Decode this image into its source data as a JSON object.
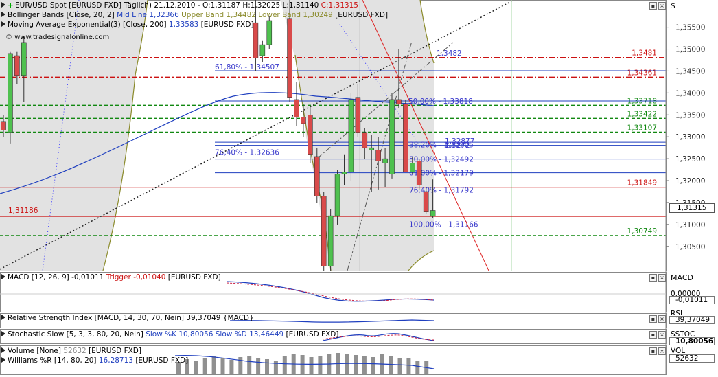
{
  "main_panel": {
    "header": "EUR/USD Spot [EURUSD FXD]  Täglich) 21.12.2010 - O:1,31187 H:1,32025 L:1,31140 ",
    "close_text": "C:1,31315",
    "bollinger_legend": {
      "prefix": "Bollinger Bands [Close, 20, 2]",
      "mid": "Mid Line 1,32366",
      "upper": "Upper Band 1,34482",
      "lower": "Lower Band 1,30249",
      "suffix": "[EURUSD FXD]"
    },
    "ema_legend": {
      "prefix": "Moving Average Exponential(3) [Close, 200]",
      "value": "1,33583",
      "suffix": "[EURUSD FXD]"
    },
    "watermark": "www.tradesignalonline.com",
    "axis_unit": "$",
    "current_price_label": "1,31315"
  },
  "colors": {
    "up_candle": "#4fc14f",
    "down_candle": "#d94a4a",
    "bollinger": "#8a8a2a",
    "ema": "#1f3fbf",
    "red_level": "#cc1111",
    "green_level": "#118811",
    "blue_level": "#1f3fbf",
    "fib_text": "#3a3acc"
  },
  "chart_data": [
    {
      "type": "candlestick",
      "title": "EUR/USD Spot [EURUSD FXD]",
      "ylim": [
        1.2995,
        1.3612
      ],
      "y_ticks": [
        "1,35500",
        "1,35000",
        "1,34500",
        "1,34000",
        "1,33500",
        "1,33000",
        "1,32500",
        "1,32000",
        "1,31500",
        "1,31000",
        "1,30500"
      ],
      "candles": [
        {
          "i": 0,
          "o": 1.3335,
          "h": 1.335,
          "l": 1.33,
          "c": 1.3315
        },
        {
          "i": 1,
          "o": 1.331,
          "h": 1.3495,
          "l": 1.3285,
          "c": 1.349
        },
        {
          "i": 2,
          "o": 1.3485,
          "h": 1.3495,
          "l": 1.342,
          "c": 1.344
        },
        {
          "i": 3,
          "o": 1.344,
          "h": 1.353,
          "l": 1.338,
          "c": 1.3515
        },
        {
          "i": 37,
          "o": 1.356,
          "h": 1.3615,
          "l": 1.345,
          "c": 1.348
        },
        {
          "i": 38,
          "o": 1.3485,
          "h": 1.352,
          "l": 1.347,
          "c": 1.351
        },
        {
          "i": 39,
          "o": 1.351,
          "h": 1.3575,
          "l": 1.35,
          "c": 1.3565
        },
        {
          "i": 42,
          "o": 1.357,
          "h": 1.3612,
          "l": 1.338,
          "c": 1.339
        },
        {
          "i": 43,
          "o": 1.3385,
          "h": 1.3425,
          "l": 1.3325,
          "c": 1.3345
        },
        {
          "i": 44,
          "o": 1.3345,
          "h": 1.3375,
          "l": 1.33,
          "c": 1.333
        },
        {
          "i": 45,
          "o": 1.335,
          "h": 1.337,
          "l": 1.324,
          "c": 1.326
        },
        {
          "i": 46,
          "o": 1.3255,
          "h": 1.3275,
          "l": 1.315,
          "c": 1.3165
        },
        {
          "i": 47,
          "o": 1.3165,
          "h": 1.3175,
          "l": 1.2995,
          "c": 1.3005
        },
        {
          "i": 48,
          "o": 1.3005,
          "h": 1.3135,
          "l": 1.2995,
          "c": 1.312
        },
        {
          "i": 49,
          "o": 1.312,
          "h": 1.3225,
          "l": 1.31,
          "c": 1.3215
        },
        {
          "i": 50,
          "o": 1.3215,
          "h": 1.326,
          "l": 1.319,
          "c": 1.322
        },
        {
          "i": 51,
          "o": 1.322,
          "h": 1.34,
          "l": 1.32,
          "c": 1.3385
        },
        {
          "i": 52,
          "o": 1.339,
          "h": 1.342,
          "l": 1.33,
          "c": 1.331
        },
        {
          "i": 53,
          "o": 1.331,
          "h": 1.332,
          "l": 1.325,
          "c": 1.3275
        },
        {
          "i": 54,
          "o": 1.327,
          "h": 1.3305,
          "l": 1.3175,
          "c": 1.3275
        },
        {
          "i": 55,
          "o": 1.327,
          "h": 1.33,
          "l": 1.318,
          "c": 1.3245
        },
        {
          "i": 56,
          "o": 1.324,
          "h": 1.3275,
          "l": 1.3185,
          "c": 1.325
        },
        {
          "i": 57,
          "o": 1.3215,
          "h": 1.34,
          "l": 1.3205,
          "c": 1.3385
        },
        {
          "i": 58,
          "o": 1.3385,
          "h": 1.35,
          "l": 1.3365,
          "c": 1.3375
        },
        {
          "i": 59,
          "o": 1.3375,
          "h": 1.3385,
          "l": 1.322,
          "c": 1.322
        },
        {
          "i": 60,
          "o": 1.322,
          "h": 1.3255,
          "l": 1.3215,
          "c": 1.324
        },
        {
          "i": 61,
          "o": 1.3245,
          "h": 1.325,
          "l": 1.318,
          "c": 1.319
        },
        {
          "i": 62,
          "o": 1.3175,
          "h": 1.3185,
          "l": 1.3125,
          "c": 1.313
        },
        {
          "i": 63,
          "o": 1.3119,
          "h": 1.3203,
          "l": 1.3114,
          "c": 1.3132
        }
      ],
      "levels": [
        {
          "value": 1.3481,
          "label": "1,3481",
          "color": "red",
          "style": "dashdot",
          "side": "right"
        },
        {
          "value": 1.34361,
          "label": "1,34361",
          "color": "red",
          "style": "dashdot",
          "side": "right"
        },
        {
          "value": 1.33718,
          "label": "1,33718",
          "color": "green",
          "style": "dashed",
          "side": "right"
        },
        {
          "value": 1.33422,
          "label": "1,33422",
          "color": "green",
          "style": "dashed",
          "side": "right"
        },
        {
          "value": 1.33107,
          "label": "1,33107",
          "color": "green",
          "style": "dashed",
          "side": "right"
        },
        {
          "value": 1.31849,
          "label": "1,31849",
          "color": "red",
          "style": "solid",
          "side": "right"
        },
        {
          "value": 1.31186,
          "label": "1,31186",
          "color": "red",
          "style": "solid",
          "side": "left"
        },
        {
          "value": 1.30749,
          "label": "1,30749",
          "color": "green",
          "style": "dashed",
          "side": "right"
        }
      ],
      "fib_labels": [
        {
          "value": 1.34507,
          "text": "61,80% - 1,34507"
        },
        {
          "value": 1.32636,
          "text": "76,40% - 1,32636"
        },
        {
          "value": 1.3482,
          "text": "1,3482"
        },
        {
          "value": 1.33818,
          "text": "50,00% - 1,33818"
        },
        {
          "value": 1.32877,
          "text": "1,32877"
        },
        {
          "value": 1.32805,
          "text": "38,20% - 1,32805"
        },
        {
          "value": 1.3272,
          "text": "1,3272"
        },
        {
          "value": 1.32492,
          "text": "50,00% - 1,32492"
        },
        {
          "value": 1.32179,
          "text": "61,80% - 1,32179"
        },
        {
          "value": 1.31792,
          "text": "76,40% - 1,31792"
        },
        {
          "value": 1.31166,
          "text": "100,00% - 1,31166"
        }
      ]
    }
  ],
  "sub_panels": [
    {
      "id": "macd",
      "legend_prefix": "MACD [12, 26, 9] -0,01011",
      "legend_extra": "Trigger -0,01040",
      "legend_suffix": "[EURUSD FXD]",
      "axis_title": "MACD",
      "axis_tick": "0,00000",
      "axis_value": "-0,01011"
    },
    {
      "id": "rsi",
      "legend_prefix": "Relative Strength Index [MACD, 14, 30, 70, Nein] 39,37049",
      "legend_extra": "",
      "legend_suffix": "{MACD}",
      "axis_title": "RSI",
      "axis_tick": "",
      "axis_value": "39,37049"
    },
    {
      "id": "stoch",
      "legend_prefix": "Stochastic Slow [5, 3, 3, 80, 20, Nein]",
      "legend_extra": "Slow %K 10,80056 Slow %D 13,46449",
      "legend_suffix": "[EURUSD FXD]",
      "axis_title": "SSTOC",
      "axis_tick": "",
      "axis_value": "10,80056"
    },
    {
      "id": "volume",
      "legend_prefix": "Volume [None]",
      "legend_extra": "52632",
      "legend_suffix": "[EURUSD FXD]",
      "axis_title": "VOL",
      "axis_tick": "",
      "axis_value": "52632"
    },
    {
      "id": "williams",
      "legend_prefix": "Williams %R [14, 80, 20]",
      "legend_extra": "16,28713",
      "legend_suffix": "[EURUSD FXD]",
      "axis_title": "",
      "axis_tick": "",
      "axis_value": ""
    }
  ]
}
